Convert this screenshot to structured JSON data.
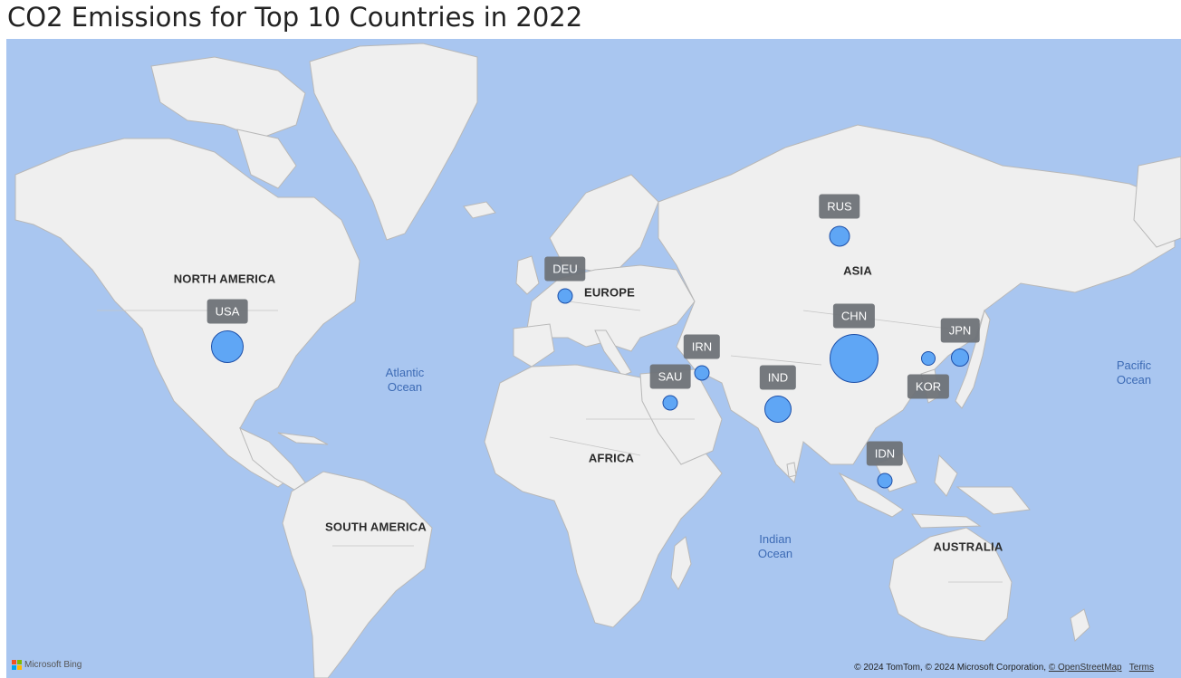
{
  "title": "CO2 Emissions for Top 10 Countries in 2022",
  "map": {
    "colors": {
      "ocean": "#a9c6f0",
      "land": "#efefef",
      "border": "#b8b8b8",
      "bubble_fill": "#5fa6f5",
      "bubble_stroke": "#1d4fa8",
      "label_bg": "#6f7378"
    },
    "regions": {
      "north_america": "NORTH AMERICA",
      "south_america": "SOUTH AMERICA",
      "europe": "EUROPE",
      "africa": "AFRICA",
      "asia": "ASIA",
      "australia": "AUSTRALIA"
    },
    "oceans": {
      "atlantic": [
        "Atlantic",
        "Ocean"
      ],
      "indian": [
        "Indian",
        "Ocean"
      ],
      "pacific": [
        "Pacific",
        "Ocean"
      ]
    },
    "countries": [
      {
        "code": "USA",
        "lat": 39.5,
        "lon": -98.5,
        "emissions_rank_size": 2
      },
      {
        "code": "DEU",
        "lat": 51.2,
        "lon": 10.4,
        "emissions_rank_size": 8
      },
      {
        "code": "RUS",
        "lat": 58.0,
        "lon": 89.0,
        "emissions_rank_size": 4
      },
      {
        "code": "CHN",
        "lat": 35.0,
        "lon": 103.0,
        "emissions_rank_size": 1
      },
      {
        "code": "IND",
        "lat": 21.0,
        "lon": 79.0,
        "emissions_rank_size": 3
      },
      {
        "code": "JPN",
        "lat": 36.0,
        "lon": 138.0,
        "emissions_rank_size": 5
      },
      {
        "code": "KOR",
        "lat": 36.0,
        "lon": 128.0,
        "emissions_rank_size": 9
      },
      {
        "code": "IRN",
        "lat": 32.0,
        "lon": 53.0,
        "emissions_rank_size": 6
      },
      {
        "code": "SAU",
        "lat": 24.0,
        "lon": 45.0,
        "emissions_rank_size": 7
      },
      {
        "code": "IDN",
        "lat": -2.0,
        "lon": 115.0,
        "emissions_rank_size": 10
      }
    ]
  },
  "footer": {
    "bing": "Microsoft Bing",
    "copyright": "© 2024 TomTom, © 2024 Microsoft Corporation,",
    "osm": "© OpenStreetMap",
    "terms": "Terms"
  }
}
